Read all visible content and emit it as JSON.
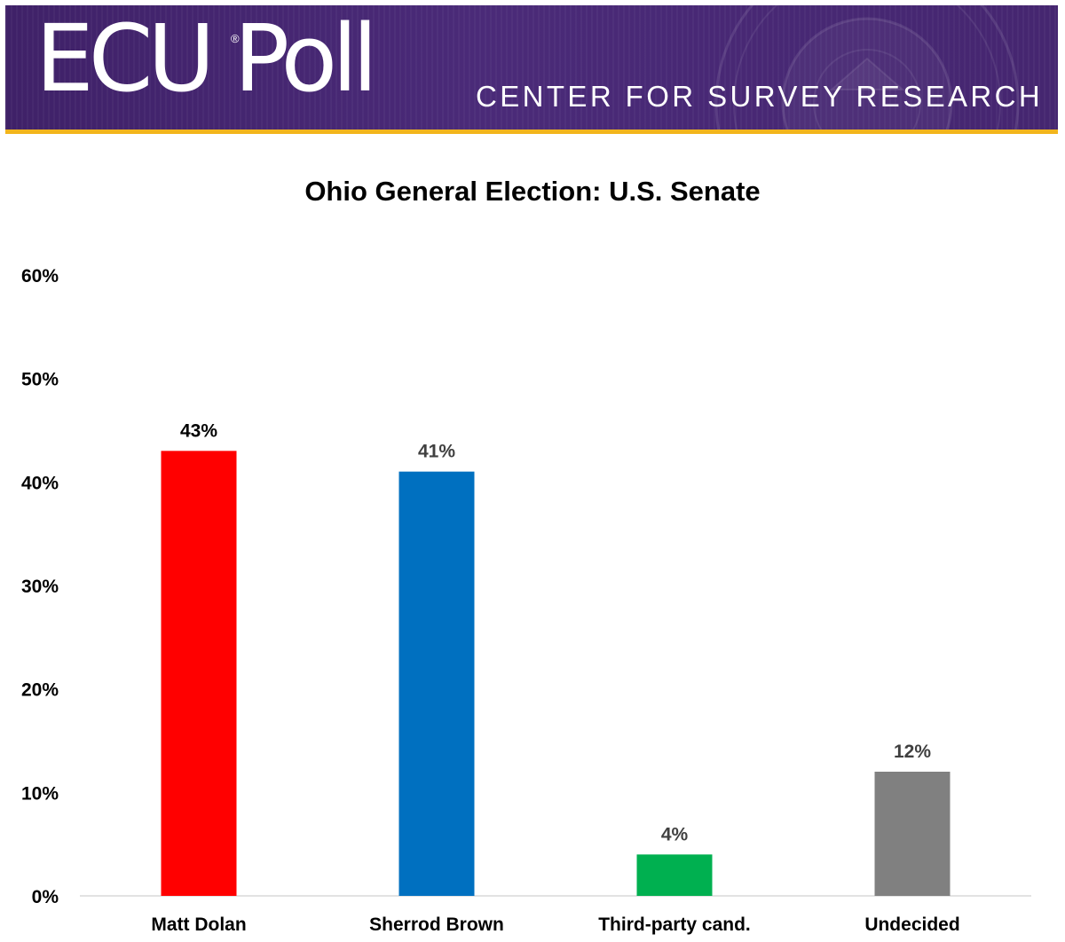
{
  "header": {
    "logo_text": "ECU Poll",
    "logo_mark": "®",
    "subtitle": "CENTER FOR SURVEY RESEARCH",
    "banner_color": "#452670",
    "accent_color": "#f2b51c"
  },
  "chart_data": {
    "type": "bar",
    "title": "Ohio General Election: U.S. Senate",
    "categories": [
      "Matt Dolan",
      "Sherrod Brown",
      "Third-party cand.",
      "Undecided"
    ],
    "values": [
      43,
      41,
      4,
      12
    ],
    "data_labels": [
      "43%",
      "41%",
      "4%",
      "12%"
    ],
    "colors": [
      "#ff0000",
      "#0070c0",
      "#00b050",
      "#808080"
    ],
    "ylim": [
      0,
      60
    ],
    "yticks": [
      0,
      10,
      20,
      30,
      40,
      50,
      60
    ],
    "ytick_labels": [
      "0%",
      "10%",
      "20%",
      "30%",
      "40%",
      "50%",
      "60%"
    ],
    "xlabel": "",
    "ylabel": "",
    "grid": false,
    "legend": "none"
  }
}
